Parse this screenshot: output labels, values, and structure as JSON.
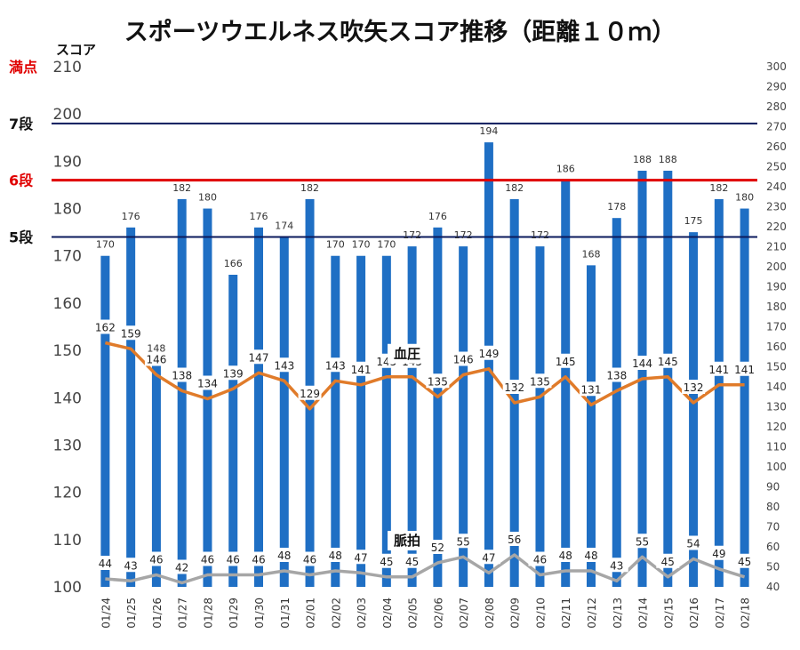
{
  "chart_data": {
    "type": "bar",
    "title": "スポーツウエルネス吹矢スコア推移（距離１０ｍ）",
    "y_left_label": "スコア",
    "y_left_range": [
      100,
      210
    ],
    "y_left_ticks": [
      100,
      110,
      120,
      130,
      140,
      150,
      160,
      170,
      180,
      190,
      200,
      210
    ],
    "y_right_range": [
      40,
      300
    ],
    "y_right_ticks": [
      40,
      50,
      60,
      70,
      80,
      90,
      100,
      110,
      120,
      130,
      140,
      150,
      160,
      170,
      180,
      190,
      200,
      210,
      220,
      230,
      240,
      250,
      260,
      270,
      280,
      290,
      300
    ],
    "categories": [
      "01/24",
      "01/25",
      "01/26",
      "01/27",
      "01/28",
      "01/29",
      "01/30",
      "01/31",
      "02/01",
      "02/02",
      "02/03",
      "02/04",
      "02/05",
      "02/06",
      "02/07",
      "02/08",
      "02/09",
      "02/10",
      "02/11",
      "02/12",
      "02/13",
      "02/14",
      "02/15",
      "02/16",
      "02/17",
      "02/18"
    ],
    "series": [
      {
        "values": [
          170,
          176,
          148,
          182,
          180,
          166,
          176,
          174,
          182,
          170,
          170,
          170,
          172,
          176,
          172,
          194,
          182,
          172,
          186,
          168,
          178,
          188,
          188,
          175,
          182,
          180
        ],
        "color": "#1f6fc4",
        "axis": "left"
      },
      {
        "name": "血圧",
        "values": [
          162,
          159,
          146,
          138,
          134,
          139,
          147,
          143,
          129,
          143,
          141,
          145,
          145,
          135,
          146,
          149,
          132,
          135,
          145,
          131,
          138,
          144,
          145,
          132,
          141,
          141
        ],
        "color": "#e07b2a",
        "axis": "right"
      },
      {
        "name": "脈拍",
        "values": [
          44,
          43,
          46,
          42,
          46,
          46,
          46,
          48,
          46,
          48,
          47,
          45,
          45,
          52,
          55,
          47,
          56,
          46,
          48,
          48,
          43,
          55,
          45,
          54,
          49,
          45
        ],
        "color": "#a6a6a6",
        "axis": "right"
      }
    ],
    "reference_lines": [
      {
        "label": "満点",
        "value": 210,
        "color": "#e00000",
        "label_color": "#e00000"
      },
      {
        "label": "7段",
        "value": 198,
        "color": "#0b1a5c",
        "label_color": "#111111"
      },
      {
        "label": "6段",
        "value": 186,
        "color": "#e00000",
        "label_color": "#e00000"
      },
      {
        "label": "5段",
        "value": 174,
        "color": "#0b1a5c",
        "label_color": "#111111"
      }
    ],
    "grid": false
  }
}
